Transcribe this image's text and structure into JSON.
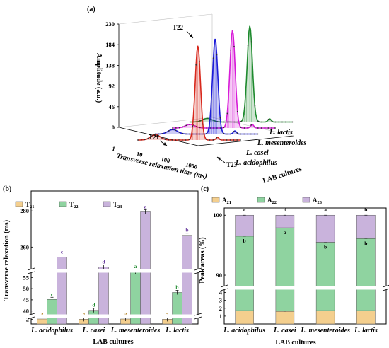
{
  "chart_data": [
    {
      "panel": "(a)",
      "type": "line",
      "ylabel": "Amplitude (a.u.)",
      "xlabel": "Transverse relaxation time (ms)",
      "zlabel": "LAB cultures",
      "yticks": [
        "0",
        "46",
        "92",
        "138",
        "184",
        "230"
      ],
      "xticks": [
        "1",
        "10",
        "100",
        "1000"
      ],
      "cultures": [
        "L. acidophilus",
        "L. casei",
        "L. mesenteroides",
        "L. lactis"
      ],
      "colors": [
        "#d8281c",
        "#1b1bd8",
        "#d81bd8",
        "#1e8a2e"
      ],
      "annotations": [
        "T22",
        "T21",
        "T23"
      ],
      "series": [
        {
          "name": "L. acidophilus",
          "peak_T21": 12,
          "peak_T22": 210,
          "peak_T23": 6
        },
        {
          "name": "L. casei",
          "peak_T21": 10,
          "peak_T22": 212,
          "peak_T23": 7
        },
        {
          "name": "L. mesenteroides",
          "peak_T21": 8,
          "peak_T22": 218,
          "peak_T23": 8
        },
        {
          "name": "L. lactis",
          "peak_T21": 8,
          "peak_T22": 214,
          "peak_T23": 7
        }
      ]
    },
    {
      "panel": "(b)",
      "type": "bar",
      "ylabel": "Transverse relaxation (ms)",
      "xlabel": "LAB cultures",
      "categories": [
        "L. acidophilus",
        "L. casei",
        "L. mesenteroides",
        "L. lactis"
      ],
      "legend": [
        "T21",
        "T22",
        "T23"
      ],
      "yticks_lower": [
        "2",
        "40",
        "45",
        "50",
        "55"
      ],
      "yticks_upper": [
        "260",
        "280"
      ],
      "series": [
        {
          "name": "T21",
          "color": "#f4cf8e",
          "values": [
            2.1,
            2.0,
            2.1,
            2.0
          ],
          "letters": [
            "a",
            "a",
            "a",
            "a"
          ]
        },
        {
          "name": "T22",
          "color": "#8fd3a0",
          "values": [
            45.2,
            40.3,
            57.6,
            48.3
          ],
          "letters": [
            "c",
            "d",
            "a",
            "b"
          ]
        },
        {
          "name": "T23",
          "color": "#c9b3dc",
          "values": [
            254.5,
            249.0,
            279.5,
            266.5
          ],
          "letters": [
            "c",
            "d",
            "a",
            "b"
          ]
        }
      ]
    },
    {
      "panel": "(c)",
      "type": "bar",
      "stacked": true,
      "ylabel": "Peak areas (%)",
      "xlabel": "LAB cultures",
      "categories": [
        "L. acidophilus",
        "L. casei",
        "L. mesenteroides",
        "L. lactis"
      ],
      "legend": [
        "A21",
        "A22",
        "A23"
      ],
      "yticks": [
        "1",
        "2",
        "3",
        "4",
        "90",
        "100"
      ],
      "series": [
        {
          "name": "A21",
          "color": "#f4cf8e",
          "values": [
            1.7,
            1.6,
            1.7,
            1.7
          ],
          "letters": [
            "a",
            "a",
            "a",
            "a"
          ]
        },
        {
          "name": "A22",
          "color": "#8fd3a0",
          "values": [
            94.8,
            96.3,
            93.8,
            94.4
          ],
          "letters": [
            "b",
            "a",
            "b",
            "b"
          ]
        },
        {
          "name": "A23",
          "color": "#c9b3dc",
          "values": [
            3.5,
            2.1,
            4.5,
            3.9
          ],
          "letters": [
            "c",
            "d",
            "a",
            "b"
          ]
        }
      ]
    }
  ]
}
